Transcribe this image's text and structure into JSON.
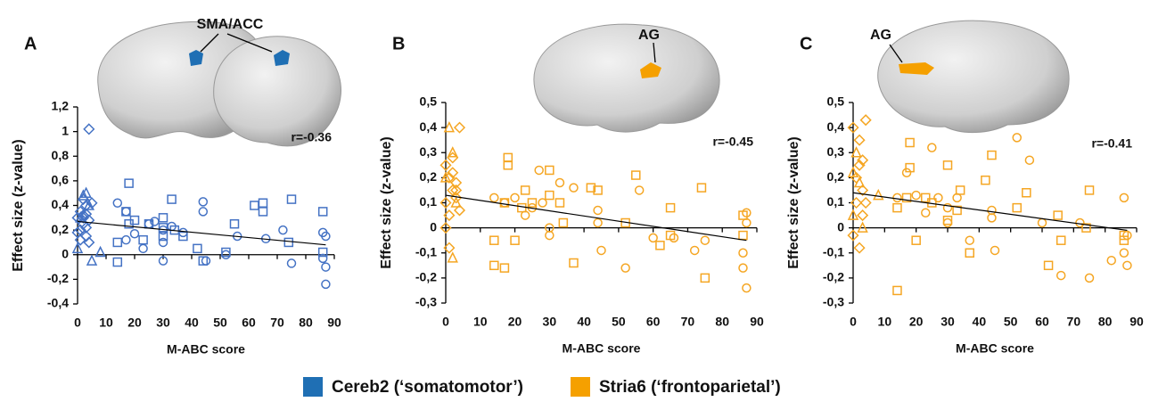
{
  "chart_data": [
    {
      "type": "scatter",
      "panel": "A",
      "annotation": "SMA/ACC",
      "r_label": "r=-0.36",
      "xlabel": "M-ABC score",
      "ylabel": "Effect size (z-value)",
      "xlim": [
        0,
        90
      ],
      "xticks": [
        0,
        10,
        20,
        30,
        40,
        50,
        60,
        70,
        80,
        90
      ],
      "ylim": [
        -0.4,
        1.2
      ],
      "yticks": [
        {
          "value": 1.2,
          "label": "1,2"
        },
        1,
        {
          "value": 0.8,
          "label": "0,8"
        },
        {
          "value": 0.6,
          "label": "0,6"
        },
        {
          "value": 0.4,
          "label": "0,4"
        },
        {
          "value": 0.2,
          "label": "0,2"
        },
        0,
        {
          "value": -0.2,
          "label": "-0,2"
        },
        {
          "value": -0.4,
          "label": "-0,4"
        }
      ],
      "color": "#4472c4",
      "series": [
        {
          "marker": "diamond",
          "x": [
            0,
            1,
            1,
            2,
            2,
            3,
            3,
            4,
            4,
            5,
            1,
            2,
            3,
            0,
            4,
            3,
            2
          ],
          "values": [
            0.3,
            0.35,
            0.2,
            0.25,
            0.45,
            0.4,
            0.15,
            0.1,
            0.28,
            0.42,
            0.12,
            0.32,
            0.22,
            0.18,
            1.02,
            0.33,
            0.3
          ]
        },
        {
          "marker": "triangle",
          "x": [
            0,
            1,
            2,
            3,
            4,
            5,
            8
          ],
          "values": [
            0.05,
            0.3,
            0.48,
            0.5,
            0.4,
            -0.05,
            0.02
          ]
        },
        {
          "marker": "square",
          "x": [
            14,
            14,
            17,
            18,
            18,
            20,
            23,
            25,
            30,
            30,
            30,
            33,
            34,
            37,
            42,
            44,
            52,
            55,
            62,
            65,
            65,
            74,
            75,
            86,
            86
          ],
          "values": [
            0.1,
            -0.06,
            0.35,
            0.58,
            0.25,
            0.28,
            0.12,
            0.25,
            0.3,
            0.22,
            0.15,
            0.45,
            0.2,
            0.15,
            0.05,
            -0.05,
            0.02,
            0.25,
            0.4,
            0.35,
            0.42,
            0.1,
            0.45,
            0.35,
            0.02
          ]
        },
        {
          "marker": "circle",
          "x": [
            14,
            17,
            17,
            20,
            23,
            25,
            27,
            30,
            30,
            30,
            33,
            37,
            44,
            44,
            45,
            52,
            56,
            66,
            72,
            75,
            86,
            86,
            87,
            87,
            87
          ],
          "values": [
            0.42,
            0.35,
            0.12,
            0.17,
            0.05,
            0.25,
            0.27,
            0.2,
            0.1,
            -0.05,
            0.23,
            0.18,
            0.43,
            0.35,
            -0.05,
            0.0,
            0.15,
            0.13,
            0.2,
            -0.07,
            0.18,
            -0.03,
            -0.1,
            -0.24,
            0.15
          ]
        }
      ],
      "fit": {
        "x": [
          0,
          87
        ],
        "values": [
          0.27,
          0.08
        ]
      }
    },
    {
      "type": "scatter",
      "panel": "B",
      "annotation": "AG",
      "r_label": "r=-0.45",
      "xlabel": "M-ABC score",
      "ylabel": "Effect size (z-value)",
      "xlim": [
        0,
        90
      ],
      "xticks": [
        0,
        10,
        20,
        30,
        40,
        50,
        60,
        70,
        80,
        90
      ],
      "ylim": [
        -0.3,
        0.5
      ],
      "yticks": [
        {
          "value": 0.5,
          "label": "0,5"
        },
        {
          "value": 0.4,
          "label": "0,4"
        },
        {
          "value": 0.3,
          "label": "0,3"
        },
        {
          "value": 0.2,
          "label": "0,2"
        },
        {
          "value": 0.1,
          "label": "0,1"
        },
        0,
        {
          "value": -0.1,
          "label": "-0,1"
        },
        {
          "value": -0.2,
          "label": "-0,2"
        },
        {
          "value": -0.3,
          "label": "-0,3"
        }
      ],
      "color": "#f5a623",
      "series": [
        {
          "marker": "diamond",
          "x": [
            0,
            0,
            1,
            1,
            2,
            2,
            3,
            3,
            4,
            0,
            1,
            2,
            4,
            3
          ],
          "values": [
            0.25,
            0.1,
            0.2,
            0.05,
            0.15,
            0.28,
            0.12,
            0.18,
            0.4,
            0.0,
            -0.08,
            0.22,
            0.07,
            0.15
          ]
        },
        {
          "marker": "triangle",
          "x": [
            0,
            1,
            2,
            3,
            2
          ],
          "values": [
            0.2,
            0.4,
            -0.12,
            0.1,
            0.3
          ]
        },
        {
          "marker": "square",
          "x": [
            14,
            14,
            17,
            18,
            18,
            20,
            23,
            25,
            30,
            30,
            33,
            34,
            37,
            42,
            44,
            52,
            55,
            62,
            65,
            65,
            74,
            75,
            86,
            86,
            17,
            22
          ],
          "values": [
            -0.05,
            -0.15,
            0.1,
            0.28,
            0.25,
            -0.05,
            0.15,
            0.1,
            0.23,
            0.13,
            0.1,
            0.02,
            -0.14,
            0.16,
            0.15,
            0.02,
            0.21,
            -0.07,
            0.08,
            -0.03,
            0.16,
            -0.2,
            0.05,
            -0.03,
            -0.16,
            0.08
          ]
        },
        {
          "marker": "circle",
          "x": [
            14,
            17,
            20,
            23,
            25,
            27,
            30,
            30,
            33,
            37,
            44,
            44,
            45,
            52,
            56,
            66,
            72,
            75,
            86,
            86,
            87,
            87,
            87,
            28,
            60
          ],
          "values": [
            0.12,
            0.1,
            0.12,
            0.05,
            0.08,
            0.23,
            0.0,
            -0.03,
            0.18,
            0.16,
            0.07,
            0.02,
            -0.09,
            -0.16,
            0.15,
            -0.04,
            -0.09,
            -0.05,
            -0.1,
            -0.16,
            -0.24,
            0.02,
            0.06,
            0.1,
            -0.04
          ]
        }
      ],
      "fit": {
        "x": [
          0,
          87
        ],
        "values": [
          0.13,
          -0.05
        ]
      }
    },
    {
      "type": "scatter",
      "panel": "C",
      "annotation": "AG",
      "r_label": "r=-0.41",
      "xlabel": "M-ABC score",
      "ylabel": "Effect size (z-value)",
      "xlim": [
        0,
        90
      ],
      "xticks": [
        0,
        10,
        20,
        30,
        40,
        50,
        60,
        70,
        80,
        90
      ],
      "ylim": [
        -0.3,
        0.5
      ],
      "yticks": [
        {
          "value": 0.5,
          "label": "0,5"
        },
        {
          "value": 0.4,
          "label": "0,4"
        },
        {
          "value": 0.3,
          "label": "0,3"
        },
        {
          "value": 0.2,
          "label": "0,2"
        },
        {
          "value": 0.1,
          "label": "0,1"
        },
        0,
        {
          "value": -0.1,
          "label": "-0,1"
        },
        {
          "value": -0.2,
          "label": "-0,2"
        },
        {
          "value": -0.3,
          "label": "-0,3"
        }
      ],
      "color": "#f5a623",
      "series": [
        {
          "marker": "diamond",
          "x": [
            0,
            1,
            1,
            2,
            2,
            3,
            3,
            4,
            4,
            0,
            2,
            3
          ],
          "values": [
            0.4,
            0.2,
            0.1,
            0.25,
            0.35,
            0.15,
            0.05,
            0.43,
            0.1,
            -0.03,
            -0.08,
            0.27
          ]
        },
        {
          "marker": "triangle",
          "x": [
            0,
            1,
            2,
            3,
            8,
            0
          ],
          "values": [
            0.22,
            0.3,
            0.18,
            0.0,
            0.13,
            0.05
          ]
        },
        {
          "marker": "square",
          "x": [
            14,
            14,
            17,
            18,
            18,
            20,
            23,
            25,
            30,
            30,
            33,
            34,
            37,
            42,
            44,
            52,
            55,
            62,
            65,
            66,
            74,
            75,
            86,
            86
          ],
          "values": [
            -0.25,
            0.08,
            0.12,
            0.34,
            0.24,
            -0.05,
            0.12,
            0.1,
            0.03,
            0.25,
            0.07,
            0.15,
            -0.1,
            0.19,
            0.29,
            0.08,
            0.14,
            -0.15,
            0.05,
            -0.05,
            0.0,
            0.15,
            -0.03,
            -0.05
          ]
        },
        {
          "marker": "circle",
          "x": [
            14,
            17,
            20,
            23,
            25,
            27,
            30,
            30,
            33,
            37,
            44,
            44,
            45,
            52,
            56,
            60,
            66,
            72,
            75,
            82,
            86,
            86,
            87,
            87
          ],
          "values": [
            0.12,
            0.22,
            0.13,
            0.06,
            0.32,
            0.12,
            0.02,
            0.08,
            0.12,
            -0.05,
            0.07,
            0.04,
            -0.09,
            0.36,
            0.27,
            0.02,
            -0.19,
            0.02,
            -0.2,
            -0.13,
            0.12,
            -0.1,
            -0.15,
            -0.03
          ]
        }
      ],
      "fit": {
        "x": [
          0,
          87
        ],
        "values": [
          0.14,
          -0.01
        ]
      }
    }
  ],
  "legend": [
    {
      "label": "Cereb2 (‘somatomotor’)",
      "color": "#1f6fb4"
    },
    {
      "label": "Stria6 (‘frontoparietal’)",
      "color": "#f5a000"
    }
  ]
}
